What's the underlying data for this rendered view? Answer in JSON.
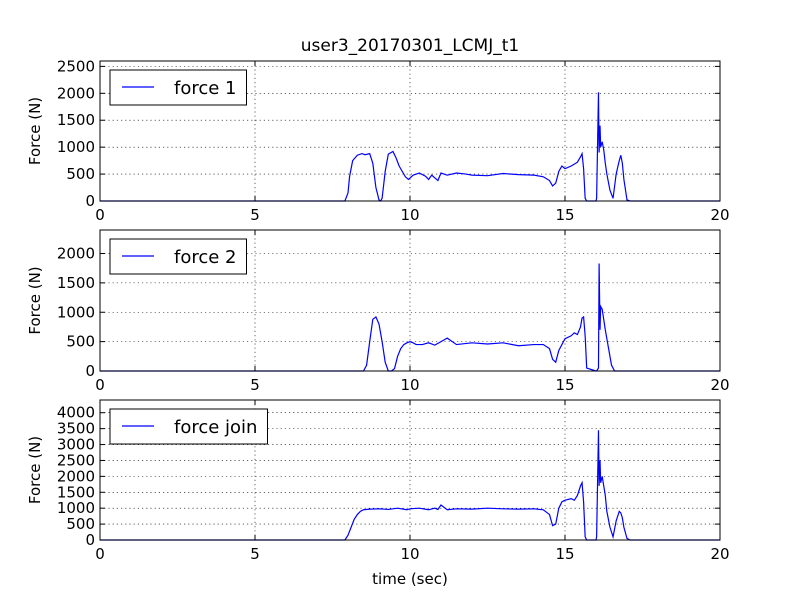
{
  "chart_data": {
    "type": "line",
    "title": "user3_20170301_LCMJ_t1",
    "xlabel": "time (sec)",
    "xlim": [
      0,
      20
    ],
    "x_ticks": [
      0,
      5,
      10,
      15,
      20
    ],
    "line_color": "#0000ff",
    "grid": true,
    "legend_position": "upper-left",
    "panels": [
      {
        "ylabel": "Force (N)",
        "ylim": [
          0,
          2600
        ],
        "y_ticks": [
          0,
          500,
          1000,
          1500,
          2000,
          2500
        ],
        "series": [
          {
            "name": "force 1",
            "x": [
              0,
              7.9,
              8.0,
              8.05,
              8.15,
              8.3,
              8.45,
              8.55,
              8.7,
              8.8,
              8.9,
              9.0,
              9.05,
              9.1,
              9.2,
              9.3,
              9.45,
              9.55,
              9.65,
              9.75,
              9.85,
              9.95,
              10.1,
              10.3,
              10.5,
              10.6,
              10.7,
              10.9,
              11.0,
              11.2,
              11.5,
              11.8,
              12.0,
              12.5,
              13.0,
              13.5,
              14.0,
              14.3,
              14.5,
              14.6,
              14.7,
              14.8,
              14.9,
              15.0,
              15.2,
              15.4,
              15.5,
              15.55,
              15.6,
              15.65,
              15.7,
              16.0,
              16.02,
              16.08,
              16.1,
              16.13,
              16.15,
              16.2,
              16.25,
              16.3,
              16.35,
              16.45,
              16.55,
              16.65,
              16.75,
              16.8,
              16.85,
              16.9,
              17.0,
              17.1,
              20
            ],
            "y": [
              0,
              0,
              150,
              450,
              750,
              850,
              880,
              860,
              880,
              700,
              250,
              20,
              0,
              50,
              550,
              870,
              920,
              800,
              650,
              550,
              450,
              400,
              480,
              520,
              460,
              400,
              480,
              380,
              520,
              480,
              520,
              500,
              480,
              470,
              510,
              490,
              480,
              450,
              380,
              280,
              330,
              550,
              650,
              600,
              650,
              720,
              820,
              880,
              600,
              50,
              0,
              0,
              50,
              2020,
              900,
              1400,
              1000,
              1100,
              950,
              700,
              500,
              200,
              50,
              500,
              750,
              850,
              700,
              400,
              20,
              0,
              0
            ]
          }
        ]
      },
      {
        "ylabel": "Force (N)",
        "ylim": [
          0,
          2400
        ],
        "y_ticks": [
          0,
          500,
          1000,
          1500,
          2000
        ],
        "series": [
          {
            "name": "force 2",
            "x": [
              0,
              8.5,
              8.6,
              8.7,
              8.8,
              8.9,
              9.0,
              9.1,
              9.2,
              9.3,
              9.4,
              9.5,
              9.6,
              9.7,
              9.8,
              9.9,
              10.0,
              10.1,
              10.2,
              10.4,
              10.6,
              10.8,
              11.0,
              11.2,
              11.5,
              12.0,
              12.5,
              13.0,
              13.5,
              14.0,
              14.3,
              14.5,
              14.6,
              14.7,
              14.8,
              15.0,
              15.2,
              15.3,
              15.4,
              15.5,
              15.55,
              15.6,
              15.65,
              15.7,
              16.0,
              16.02,
              16.08,
              16.1,
              16.13,
              16.15,
              16.2,
              16.3,
              16.4,
              16.5,
              16.6,
              16.7,
              20
            ],
            "y": [
              0,
              0,
              100,
              500,
              880,
              920,
              800,
              500,
              150,
              0,
              0,
              40,
              250,
              380,
              450,
              480,
              500,
              480,
              450,
              450,
              480,
              440,
              500,
              560,
              450,
              480,
              460,
              480,
              430,
              450,
              450,
              380,
              200,
              150,
              350,
              550,
              600,
              650,
              620,
              750,
              900,
              920,
              600,
              50,
              0,
              0,
              50,
              1830,
              700,
              1100,
              1050,
              700,
              400,
              100,
              0,
              0,
              0
            ]
          }
        ]
      },
      {
        "ylabel": "Force (N)",
        "ylim": [
          0,
          4400
        ],
        "y_ticks": [
          0,
          500,
          1000,
          1500,
          2000,
          2500,
          3000,
          3500,
          4000
        ],
        "series": [
          {
            "name": "force join",
            "x": [
              0,
              7.9,
              8.0,
              8.1,
              8.2,
              8.3,
              8.4,
              8.5,
              8.7,
              9.0,
              9.3,
              9.6,
              9.9,
              10.0,
              10.3,
              10.6,
              10.8,
              10.9,
              11.0,
              11.2,
              11.5,
              12.0,
              12.5,
              13.0,
              13.5,
              14.0,
              14.3,
              14.5,
              14.6,
              14.7,
              14.8,
              14.9,
              15.0,
              15.2,
              15.3,
              15.4,
              15.5,
              15.55,
              15.6,
              15.65,
              15.7,
              16.0,
              16.02,
              16.08,
              16.1,
              16.13,
              16.15,
              16.2,
              16.25,
              16.3,
              16.35,
              16.45,
              16.55,
              16.65,
              16.75,
              16.8,
              16.85,
              16.9,
              17.0,
              17.1,
              20
            ],
            "y": [
              0,
              0,
              150,
              400,
              650,
              800,
              900,
              950,
              970,
              980,
              960,
              1000,
              950,
              980,
              1000,
              950,
              1000,
              960,
              1100,
              950,
              980,
              970,
              1000,
              980,
              970,
              980,
              950,
              800,
              450,
              500,
              1000,
              1200,
              1250,
              1300,
              1250,
              1400,
              1700,
              1800,
              1200,
              100,
              0,
              0,
              100,
              3450,
              1700,
              2500,
              1800,
              2000,
              1700,
              1400,
              900,
              400,
              100,
              600,
              900,
              850,
              700,
              400,
              50,
              0,
              0
            ]
          }
        ]
      }
    ]
  }
}
